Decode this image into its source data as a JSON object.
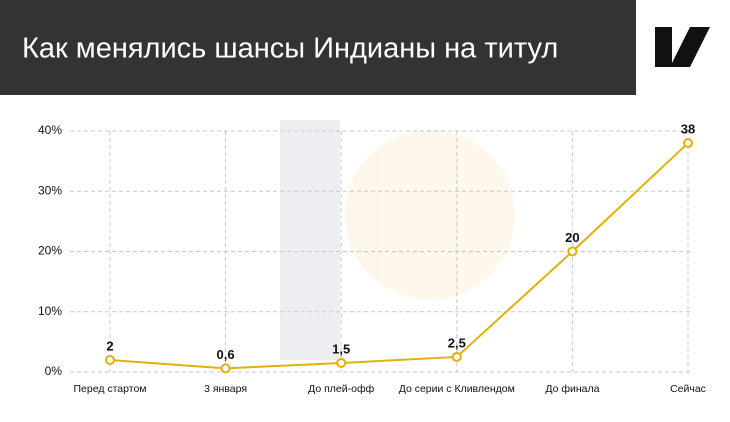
{
  "chart_data": {
    "type": "line",
    "title": "Как менялись шансы Индианы на титул",
    "categories": [
      "Перед стартом",
      "3 января",
      "До плей-офф",
      "До серии с Кливлендом",
      "До финала",
      "Сейчас"
    ],
    "series": [
      {
        "color": "#e2b106",
        "values": [
          2,
          0.6,
          1.5,
          2.5,
          20,
          38
        ],
        "value_labels": [
          "2",
          "0,6",
          "1,5",
          "2,5",
          "20",
          "38"
        ]
      }
    ],
    "ylim": [
      0,
      40
    ],
    "yticks": [
      {
        "value": 0,
        "label": "0%"
      },
      {
        "value": 10,
        "label": "10%"
      },
      {
        "value": 20,
        "label": "20%"
      },
      {
        "value": 30,
        "label": "30%"
      },
      {
        "value": 40,
        "label": "40%"
      }
    ],
    "grid": true
  }
}
